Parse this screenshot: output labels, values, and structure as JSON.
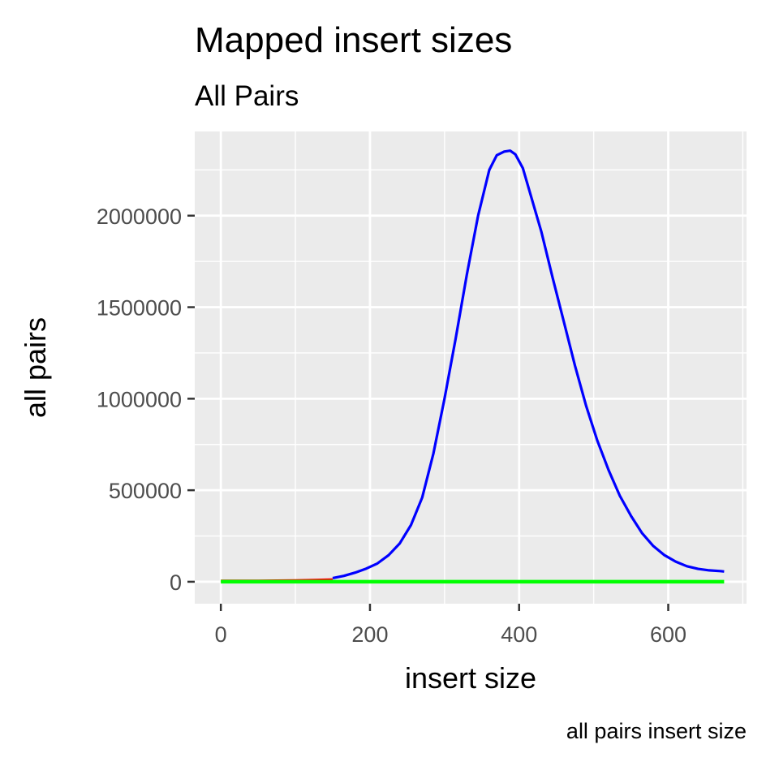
{
  "chart_data": {
    "type": "line",
    "title": "Mapped insert sizes",
    "subtitle": "All Pairs",
    "xlabel": "insert size",
    "ylabel": "all pairs",
    "caption": "all pairs insert size",
    "xlim": [
      -35,
      705
    ],
    "ylim": [
      -120000,
      2460000
    ],
    "x_ticks": [
      0,
      200,
      400,
      600
    ],
    "y_ticks": [
      0,
      500000,
      1000000,
      1500000,
      2000000
    ],
    "x_tick_labels": [
      "0",
      "200",
      "400",
      "600"
    ],
    "y_tick_labels": [
      "0",
      "500000",
      "1000000",
      "1500000",
      "2000000"
    ],
    "grid": true,
    "panel_background": "#ebebeb",
    "grid_color": "#ffffff",
    "series": [
      {
        "color": "#ff0000",
        "x": [
          0,
          25,
          50,
          75,
          100,
          125,
          150
        ],
        "y": [
          5000,
          4500,
          5000,
          6000,
          7000,
          9000,
          12000
        ]
      },
      {
        "color": "#0000ff",
        "x": [
          150,
          165,
          180,
          195,
          210,
          225,
          240,
          255,
          270,
          285,
          300,
          315,
          330,
          345,
          360,
          370,
          380,
          388,
          395,
          405,
          415,
          430,
          445,
          460,
          475,
          490,
          505,
          520,
          535,
          550,
          565,
          580,
          595,
          610,
          625,
          640,
          655,
          670,
          675
        ],
        "y": [
          20000,
          32000,
          50000,
          72000,
          100000,
          145000,
          210000,
          310000,
          460000,
          700000,
          1000000,
          1330000,
          1680000,
          2000000,
          2250000,
          2330000,
          2350000,
          2355000,
          2335000,
          2260000,
          2120000,
          1910000,
          1660000,
          1420000,
          1180000,
          960000,
          770000,
          610000,
          470000,
          360000,
          265000,
          195000,
          145000,
          110000,
          85000,
          70000,
          62000,
          58000,
          56000
        ]
      },
      {
        "color": "#00ff00",
        "x": [
          0,
          675
        ],
        "y": [
          0,
          0
        ]
      }
    ]
  }
}
